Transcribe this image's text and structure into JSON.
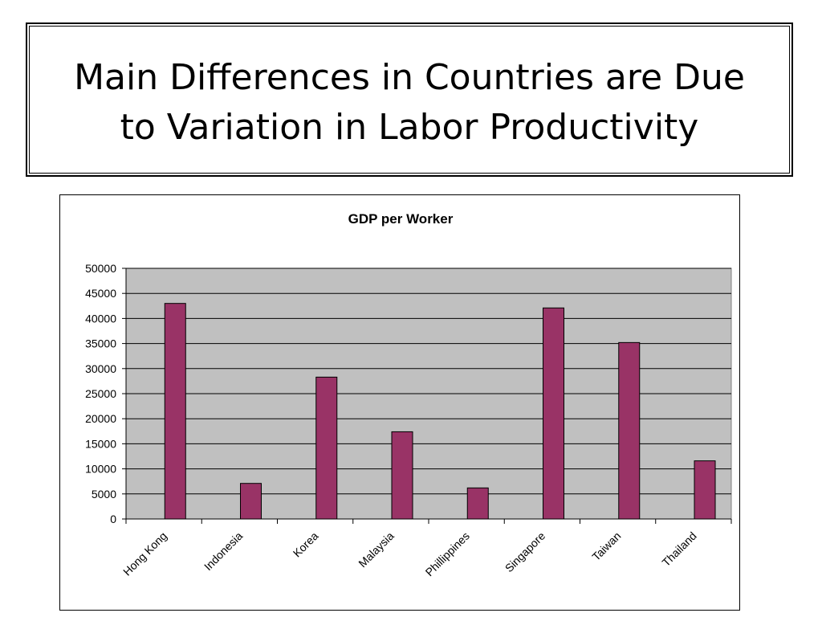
{
  "slide": {
    "title_line1": "Main Differences in Countries are Due",
    "title_line2": "to Variation in Labor Productivity"
  },
  "colors": {
    "bar_fill": "#993366",
    "plot_background": "#c0c0c0",
    "gridline": "#000000"
  },
  "chart_data": {
    "type": "bar",
    "title": "GDP per Worker",
    "xlabel": "",
    "ylabel": "",
    "categories": [
      "Hong Kong",
      "Indonesia",
      "Korea",
      "Malaysia",
      "Phillippines",
      "Singapore",
      "Taiwan",
      "Thailand"
    ],
    "values": [
      43000,
      7100,
      28300,
      17400,
      6200,
      42100,
      35200,
      11600
    ],
    "ylim": [
      0,
      50000
    ],
    "yticks": [
      "0",
      "5000",
      "10000",
      "15000",
      "20000",
      "25000",
      "30000",
      "35000",
      "40000",
      "45000",
      "50000"
    ],
    "grid": true,
    "legend": "none"
  }
}
